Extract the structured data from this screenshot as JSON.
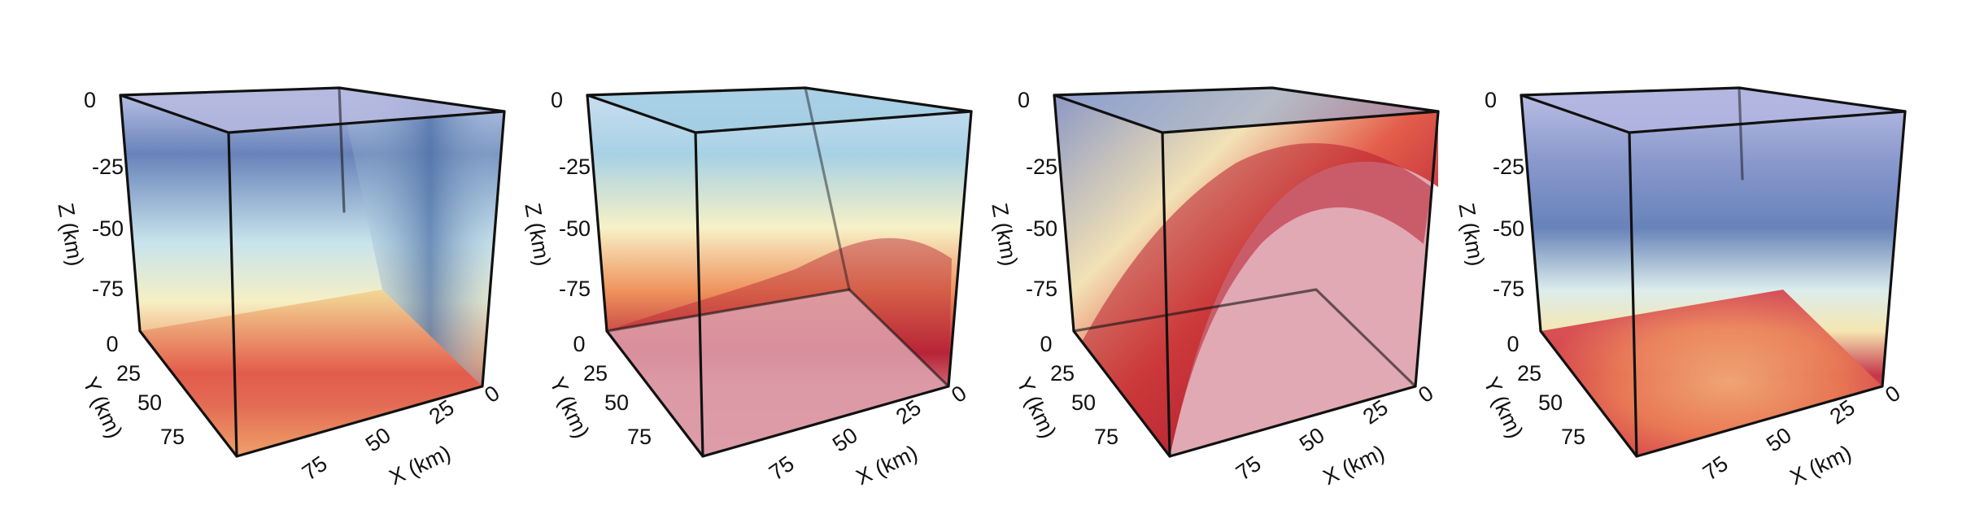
{
  "panels": [
    {
      "id": "panel-1",
      "z_ticks": [
        "0",
        "-25",
        "-50",
        "-75"
      ],
      "z_label": "Z (km)",
      "y_ticks": [
        "0",
        "25",
        "50",
        "75"
      ],
      "y_label": "Y (km)",
      "x_ticks": [
        "75",
        "50",
        "25",
        "0"
      ],
      "x_label": "X (km)"
    },
    {
      "id": "panel-2",
      "z_ticks": [
        "0",
        "-25",
        "-50",
        "-75"
      ],
      "z_label": "Z (km)",
      "y_ticks": [
        "0",
        "25",
        "50",
        "75"
      ],
      "y_label": "Y (km)",
      "x_ticks": [
        "75",
        "50",
        "25",
        "0"
      ],
      "x_label": "X (km)"
    },
    {
      "id": "panel-3",
      "z_ticks": [
        "0",
        "-25",
        "-50",
        "-75"
      ],
      "z_label": "Z (km)",
      "y_ticks": [
        "0",
        "25",
        "50",
        "75"
      ],
      "y_label": "Y (km)",
      "x_ticks": [
        "75",
        "50",
        "25",
        "0"
      ],
      "x_label": "X (km)"
    },
    {
      "id": "panel-4",
      "z_ticks": [
        "0",
        "-25",
        "-50",
        "-75"
      ],
      "z_label": "Z (km)",
      "y_ticks": [
        "0",
        "25",
        "50",
        "75"
      ],
      "y_label": "Y (km)",
      "x_ticks": [
        "75",
        "50",
        "25",
        "0"
      ],
      "x_label": "X (km)"
    }
  ],
  "colors": {
    "deep_blue": "#4a67a8",
    "light_blue": "#a9d4e6",
    "pale_yellow": "#f7f0bf",
    "orange": "#ee8a4f",
    "dark_red": "#b01a2c",
    "pink_fill": "#dc9aa6",
    "lavender": "#b6b8e0",
    "edge": "#111111"
  }
}
